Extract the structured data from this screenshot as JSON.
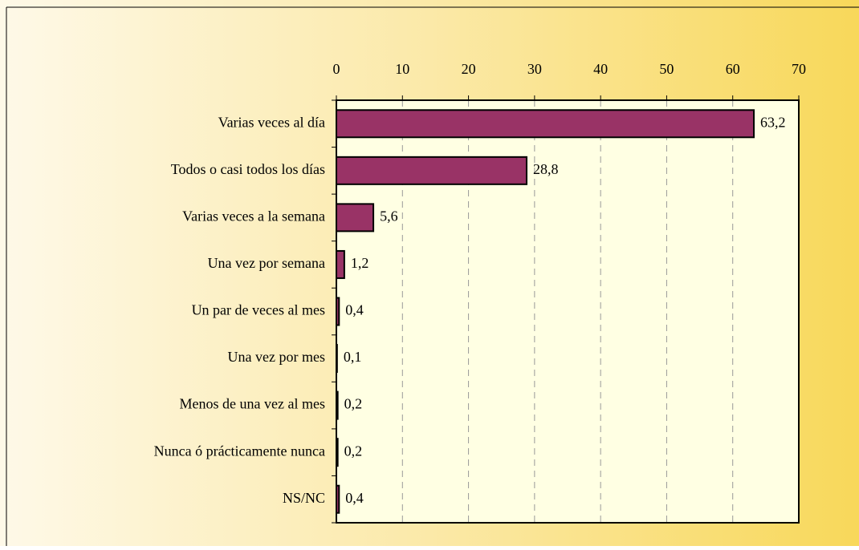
{
  "chart_data": {
    "type": "bar",
    "orientation": "horizontal",
    "categories": [
      "Varias veces al día",
      "Todos o casi todos los días",
      "Varias veces a la semana",
      "Una vez por semana",
      "Un par de veces al mes",
      "Una vez por mes",
      "Menos de una vez al mes",
      "Nunca ó prácticamente nunca",
      "NS/NC"
    ],
    "values": [
      63.2,
      28.8,
      5.6,
      1.2,
      0.4,
      0.1,
      0.2,
      0.2,
      0.4
    ],
    "value_labels": [
      "63,2",
      "28,8",
      "5,6",
      "1,2",
      "0,4",
      "0,1",
      "0,2",
      "0,2",
      "0,4"
    ],
    "color": "#993366",
    "xlim": [
      0,
      70
    ],
    "xticks": [
      0,
      10,
      20,
      30,
      40,
      50,
      60,
      70
    ],
    "grid": true
  }
}
